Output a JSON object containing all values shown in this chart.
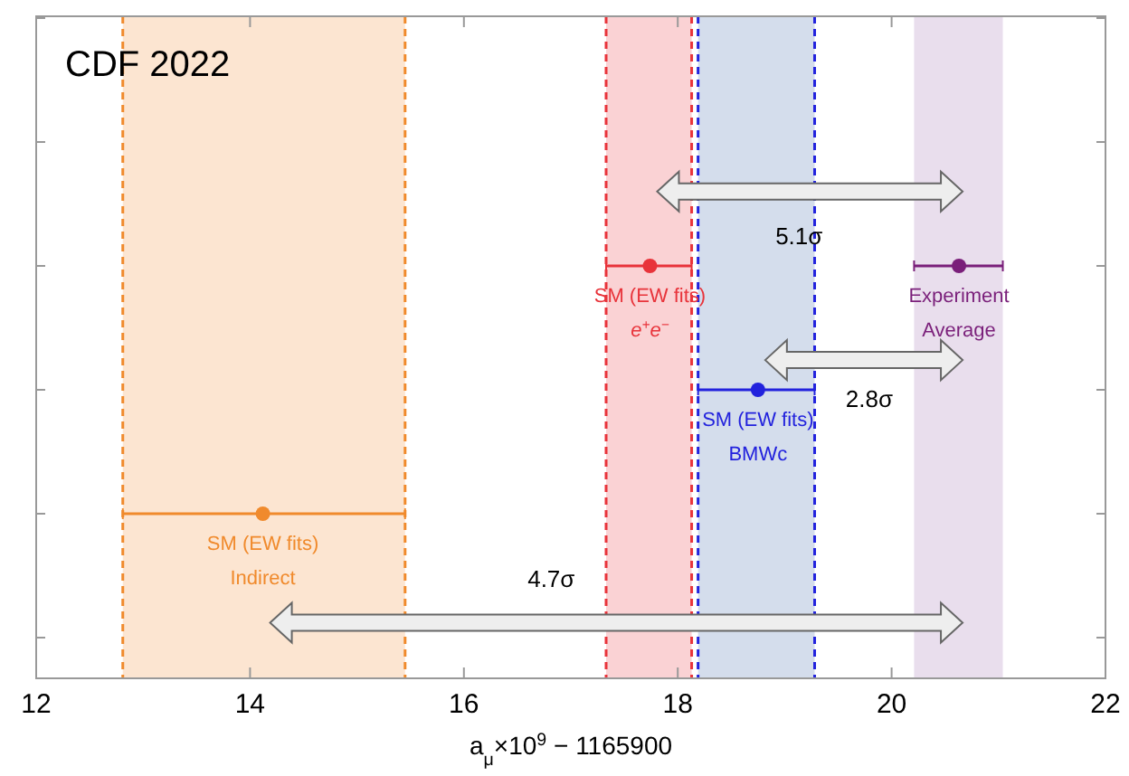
{
  "chart_data": {
    "type": "scatter",
    "orientation": "horizontal",
    "title": "CDF 2022",
    "xlabel": "a$_{μ}$×10$^{9}$ − 1165900",
    "categories": [
      null,
      null,
      null,
      null,
      null,
      null
    ],
    "xlim": [
      12,
      22
    ],
    "xticks": [
      12,
      14,
      16,
      18,
      20,
      22
    ],
    "marker": "circle",
    "series": [
      {
        "name": "SM (EW fits)\nIndirect",
        "color": "#f08a2c",
        "values": [
          null,
          null,
          null,
          null,
          14.12,
          null
        ],
        "errors": [
          null,
          null,
          null,
          null,
          [
            12.81,
            15.45
          ],
          null
        ]
      },
      {
        "name": "SM (EW fits)\ne$^{+}$e$^{−}$",
        "color": "#e8333a",
        "values": [
          null,
          null,
          17.74,
          null,
          null,
          null
        ],
        "errors": [
          null,
          null,
          [
            17.33,
            18.13
          ],
          null,
          null,
          null
        ]
      },
      {
        "name": "SM (EW fits)\nBMWc",
        "color": "#2222dd",
        "values": [
          null,
          null,
          null,
          18.75,
          null,
          null
        ],
        "errors": [
          null,
          null,
          null,
          [
            18.19,
            19.28
          ],
          null,
          null
        ]
      },
      {
        "name": "Experiment\nAverage",
        "color": "#7a1f7a",
        "values": [
          null,
          null,
          20.63,
          null,
          null,
          null
        ],
        "errors": [
          null,
          null,
          [
            20.21,
            21.04
          ],
          null,
          null,
          null
        ]
      }
    ],
    "bands": [
      {
        "axis": "x",
        "from": 12.81,
        "to": 15.45,
        "color": "#f08a2c"
      },
      {
        "axis": "x",
        "from": 17.33,
        "to": 18.13,
        "color": "#e8333a"
      },
      {
        "axis": "x",
        "from": 18.19,
        "to": 19.28,
        "color": "#3a62a8"
      },
      {
        "axis": "x",
        "from": 20.21,
        "to": 21.04,
        "color": "#9a6aae"
      }
    ],
    "ref_lines": [
      {
        "axis": "x",
        "value": 12.81,
        "color": "#f08a2c",
        "line_style": "dashed"
      },
      {
        "axis": "x",
        "value": 15.45,
        "color": "#f08a2c",
        "line_style": "dashed"
      },
      {
        "axis": "x",
        "value": 17.33,
        "color": "#e8333a",
        "line_style": "dashed"
      },
      {
        "axis": "x",
        "value": 18.13,
        "color": "#e8333a",
        "line_style": "dashed"
      },
      {
        "axis": "x",
        "value": 18.19,
        "color": "#2222dd",
        "line_style": "dashed"
      },
      {
        "axis": "x",
        "value": 19.28,
        "color": "#2222dd",
        "line_style": "dashed"
      }
    ],
    "annotations": [
      "5.1σ",
      "2.8σ",
      "4.7σ"
    ]
  }
}
